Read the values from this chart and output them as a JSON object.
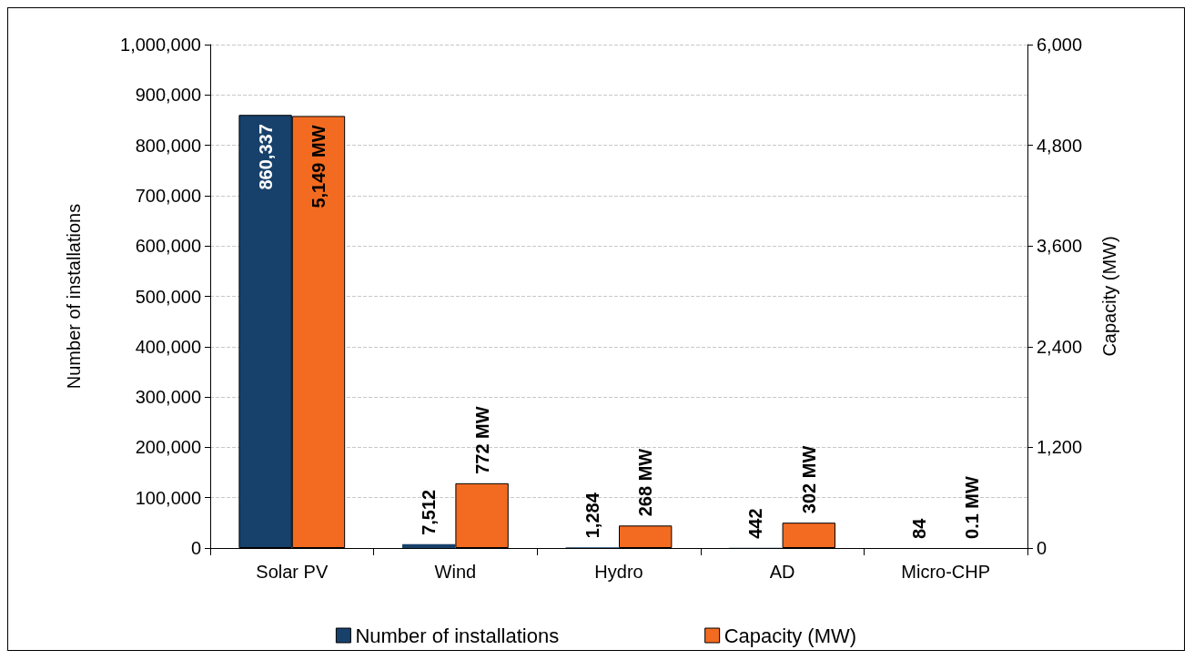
{
  "chart_data": {
    "type": "bar",
    "ylabel": "Number of installations",
    "y2label": "Capacity (MW)",
    "categories": [
      "Solar PV",
      "Wind",
      "Hydro",
      "AD",
      "Micro-CHP"
    ],
    "series": [
      {
        "name": "Number of installations",
        "color": "#17416b",
        "values": [
          860337,
          7512,
          1284,
          442,
          84
        ],
        "value_labels": [
          "860,337",
          "7,512",
          "1,284",
          "442",
          "84"
        ]
      },
      {
        "name": "Capacity (MW)",
        "color": "#f26b21",
        "axis": "y2",
        "values": [
          5149,
          772,
          268,
          302,
          0.1
        ],
        "value_labels": [
          "5,149 MW",
          "772 MW",
          "268 MW",
          "302 MW",
          "0.1 MW"
        ]
      }
    ],
    "ylim": [
      0,
      1000000
    ],
    "yticks": [
      0,
      {
        "value": 100000,
        "label": "100,000"
      },
      {
        "value": 200000,
        "label": "200,000"
      },
      {
        "value": 300000,
        "label": "300,000"
      },
      {
        "value": 400000,
        "label": "400,000"
      },
      {
        "value": 500000,
        "label": "500,000"
      },
      {
        "value": 600000,
        "label": "600,000"
      },
      {
        "value": 700000,
        "label": "700,000"
      },
      {
        "value": 800000,
        "label": "800,000"
      },
      {
        "value": 900000,
        "label": "900,000"
      },
      {
        "value": 1000000,
        "label": "1,000,000"
      }
    ],
    "y2lim": [
      0,
      6000
    ],
    "y2ticks": [
      0,
      {
        "value": 1200,
        "label": "1,200"
      },
      {
        "value": 2400,
        "label": "2,400"
      },
      {
        "value": 3600,
        "label": "3,600"
      },
      {
        "value": 4800,
        "label": "4,800"
      },
      {
        "value": 6000,
        "label": "6,000"
      }
    ],
    "grid": "y",
    "legend": "bottom"
  }
}
